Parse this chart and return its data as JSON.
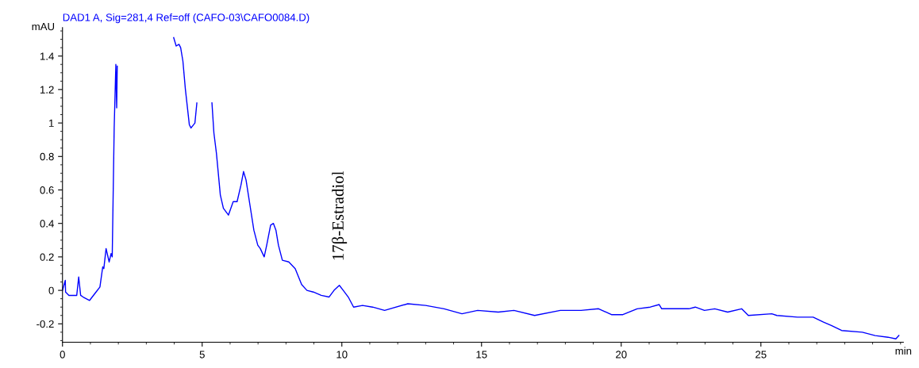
{
  "chart_data": {
    "type": "line",
    "title": "DAD1 A, Sig=281,4 Ref=off (CAFO-03\\CAFO0084.D)",
    "xlabel": "min",
    "ylabel": "mAU",
    "annotations": [
      {
        "text": "17β-Estradiol",
        "x": 9.91,
        "y": 0.03
      }
    ],
    "xlim": [
      0,
      30.1
    ],
    "ylim": [
      -0.31,
      1.57
    ],
    "xticks": [
      0,
      5,
      10,
      15,
      20,
      25
    ],
    "yticks": [
      -0.2,
      0,
      0.2,
      0.4,
      0.6,
      0.8,
      1,
      1.2,
      1.4
    ],
    "grid": false,
    "marker": "none",
    "line_style": "solid",
    "series": [
      {
        "color": "#0000ff",
        "x": [
          0,
          0.1,
          0.11,
          0.23,
          0.51,
          0.58,
          0.65,
          0.74,
          0.97,
          1.2,
          1.34,
          1.44,
          1.48,
          1.56,
          1.67,
          1.74,
          1.78,
          1.85,
          1.91,
          1.94,
          1.96,
          1.99,
          2.5,
          3.91,
          3.98,
          4.07,
          4.17,
          4.23,
          4.31,
          4.4,
          4.54,
          4.6,
          4.74,
          4.81,
          4.88,
          5.1,
          5.26,
          5.35,
          5.42,
          5.51,
          5.65,
          5.76,
          5.94,
          6.11,
          6.25,
          6.39,
          6.48,
          6.57,
          6.71,
          6.85,
          6.99,
          7.08,
          7.22,
          7.31,
          7.45,
          7.55,
          7.64,
          7.73,
          7.87,
          8.1,
          8.33,
          8.56,
          8.75,
          8.98,
          9.26,
          9.54,
          9.72,
          9.91,
          10.05,
          10.23,
          10.42,
          10.74,
          11.1,
          11.53,
          12.36,
          13.0,
          13.66,
          14.3,
          14.86,
          15.6,
          16.16,
          16.9,
          17.82,
          18.56,
          19.19,
          19.65,
          20.06,
          20.57,
          21.04,
          21.36,
          21.45,
          21.96,
          22.42,
          22.65,
          22.98,
          23.35,
          23.81,
          24.31,
          24.55,
          25.39,
          25.57,
          26.31,
          26.87,
          27.24,
          27.52,
          27.89,
          28.63,
          29.09,
          29.55,
          29.83,
          29.94
        ],
        "values": [
          0,
          0.06,
          -0.01,
          -0.03,
          -0.03,
          0.08,
          -0.03,
          -0.04,
          -0.06,
          -0.01,
          0.02,
          0.14,
          0.13,
          0.25,
          0.17,
          0.22,
          0.2,
          0.97,
          1.35,
          1.09,
          1.34,
          null,
          null,
          null,
          1.51,
          1.46,
          1.47,
          1.45,
          1.37,
          1.2,
          0.99,
          0.97,
          1.0,
          1.12,
          null,
          null,
          null,
          1.12,
          0.94,
          0.82,
          0.57,
          0.49,
          0.45,
          0.53,
          0.53,
          0.63,
          0.71,
          0.66,
          0.51,
          0.36,
          0.27,
          0.25,
          0.2,
          0.27,
          0.39,
          0.4,
          0.36,
          0.27,
          0.18,
          0.17,
          0.13,
          0.035,
          0,
          -0.01,
          -0.03,
          -0.04,
          0,
          0.03,
          0,
          -0.04,
          -0.1,
          -0.09,
          -0.1,
          -0.12,
          -0.08,
          -0.09,
          -0.11,
          -0.14,
          -0.12,
          -0.13,
          -0.12,
          -0.15,
          -0.12,
          -0.12,
          -0.11,
          -0.145,
          -0.145,
          -0.11,
          -0.1,
          -0.085,
          -0.11,
          -0.11,
          -0.11,
          -0.1,
          -0.12,
          -0.11,
          -0.13,
          -0.11,
          -0.15,
          -0.14,
          -0.15,
          -0.16,
          -0.16,
          -0.19,
          -0.21,
          -0.24,
          -0.25,
          -0.27,
          -0.28,
          -0.29,
          -0.27
        ]
      }
    ]
  }
}
